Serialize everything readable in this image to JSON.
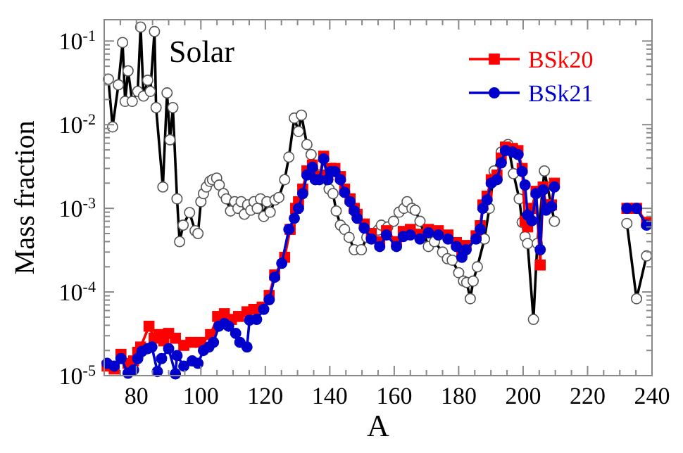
{
  "chart_data": {
    "type": "line",
    "xlabel": "A",
    "ylabel": "Mass fraction",
    "log": "y",
    "grid": false,
    "legend": "top right",
    "xlim": [
      70,
      240
    ],
    "ylim": [
      1e-05,
      0.18
    ],
    "xticks": [
      {
        "value": 75,
        "label": null
      },
      80,
      {
        "value": 85,
        "label": null
      },
      {
        "value": 90,
        "label": null
      },
      {
        "value": 95,
        "label": null
      },
      100,
      {
        "value": 105,
        "label": null
      },
      {
        "value": 110,
        "label": null
      },
      {
        "value": 115,
        "label": null
      },
      120,
      {
        "value": 125,
        "label": null
      },
      {
        "value": 130,
        "label": null
      },
      {
        "value": 135,
        "label": null
      },
      140,
      {
        "value": 145,
        "label": null
      },
      {
        "value": 150,
        "label": null
      },
      {
        "value": 155,
        "label": null
      },
      160,
      {
        "value": 165,
        "label": null
      },
      {
        "value": 170,
        "label": null
      },
      {
        "value": 175,
        "label": null
      },
      180,
      {
        "value": 185,
        "label": null
      },
      {
        "value": 190,
        "label": null
      },
      {
        "value": 195,
        "label": null
      },
      200,
      {
        "value": 205,
        "label": null
      },
      {
        "value": 210,
        "label": null
      },
      {
        "value": 215,
        "label": null
      },
      220,
      {
        "value": 225,
        "label": null
      },
      {
        "value": 230,
        "label": null
      },
      {
        "value": 235,
        "label": null
      },
      240
    ],
    "yticks": [
      {
        "value": 1e-05,
        "label": "10$^{-5}$"
      },
      {
        "value": 2e-05,
        "label": null
      },
      {
        "value": 3e-05,
        "label": null
      },
      {
        "value": 4e-05,
        "label": null
      },
      {
        "value": 5e-05,
        "label": null
      },
      {
        "value": 6e-05,
        "label": null
      },
      {
        "value": 7e-05,
        "label": null
      },
      {
        "value": 8e-05,
        "label": null
      },
      {
        "value": 9e-05,
        "label": null
      },
      {
        "value": 0.0001,
        "label": "10$^{-4}$"
      },
      {
        "value": 0.0002,
        "label": null
      },
      {
        "value": 0.0003,
        "label": null
      },
      {
        "value": 0.0004,
        "label": null
      },
      {
        "value": 0.0005,
        "label": null
      },
      {
        "value": 0.0006,
        "label": null
      },
      {
        "value": 0.0007,
        "label": null
      },
      {
        "value": 0.0008,
        "label": null
      },
      {
        "value": 0.0009,
        "label": null
      },
      {
        "value": 0.001,
        "label": "10$^{-3}$"
      },
      {
        "value": 0.002,
        "label": null
      },
      {
        "value": 0.003,
        "label": null
      },
      {
        "value": 0.004,
        "label": null
      },
      {
        "value": 0.005,
        "label": null
      },
      {
        "value": 0.006,
        "label": null
      },
      {
        "value": 0.007,
        "label": null
      },
      {
        "value": 0.008,
        "label": null
      },
      {
        "value": 0.009,
        "label": null
      },
      {
        "value": 0.01,
        "label": "10$^{-2}$"
      },
      {
        "value": 0.02,
        "label": null
      },
      {
        "value": 0.03,
        "label": null
      },
      {
        "value": 0.04,
        "label": null
      },
      {
        "value": 0.05,
        "label": null
      },
      {
        "value": 0.06,
        "label": null
      },
      {
        "value": 0.07,
        "label": null
      },
      {
        "value": 0.08,
        "label": null
      },
      {
        "value": 0.09,
        "label": null
      },
      {
        "value": 0.1,
        "label": "10$^{-1}$"
      }
    ],
    "series": [
      {
        "name": "Solar",
        "color": "#000000",
        "marker": "circle",
        "x": [
          71.3,
          72.6,
          74.4,
          75.7,
          76.5,
          77.4,
          78.7,
          80.4,
          81.3,
          82.2,
          83.5,
          84.3,
          85.6,
          86.1,
          88.2,
          89.5,
          90.4,
          91.3,
          92.6,
          93.4,
          94.5,
          96.5,
          98.2,
          99.1,
          100,
          100.8,
          101.7,
          102.8,
          103.6,
          104.9,
          105.7,
          107,
          107.9,
          109.2,
          110.5,
          111.5,
          112.5,
          113.5,
          114.5,
          115.5,
          116.5,
          117.5,
          118.5,
          119.5,
          120.5,
          121.5,
          123,
          124.2,
          126,
          127.3,
          129,
          130.3,
          131.2,
          132.9,
          134.2,
          136.8,
          139.8,
          141,
          142,
          143.3,
          144.6,
          146,
          147.6,
          149.8,
          151.5,
          153,
          155,
          156,
          158,
          159.8,
          161.5,
          163,
          164,
          165.5,
          166.5,
          168,
          170.6,
          172.5,
          175,
          176.5,
          178,
          180,
          181.5,
          182.5,
          183.6,
          184.5,
          185.8,
          188,
          189.5,
          191,
          193.2,
          195.3,
          197,
          198.8,
          199.7,
          200.6,
          201.4,
          203.2,
          204.4,
          206.6,
          209.7,
          220,
          232.2,
          235.2,
          238.3
        ],
        "values": [
          0.035,
          0.0094,
          0.03,
          0.096,
          0.019,
          0.044,
          0.019,
          0.025,
          0.147,
          0.022,
          0.034,
          0.025,
          0.13,
          0.016,
          0.0018,
          0.024,
          0.0066,
          0.016,
          0.0013,
          0.0004,
          0.00063,
          0.00089,
          0.00054,
          0.0005,
          0.0012,
          0.0015,
          0.0018,
          0.0021,
          0.0022,
          0.0023,
          0.0019,
          0.0015,
          0.0013,
          0.00093,
          0.0012,
          0.001,
          0.0012,
          0.00085,
          0.0011,
          0.00095,
          0.0012,
          0.001,
          0.0013,
          0.0008,
          0.0012,
          0.0009,
          0.00126,
          0.00135,
          0.0022,
          0.0041,
          0.012,
          0.0083,
          0.013,
          0.0058,
          0.0044,
          0.0025,
          0.0017,
          0.0015,
          0.00093,
          0.00063,
          0.00056,
          0.00045,
          0.00032,
          0.00032,
          0.00045,
          0.0005,
          0.00055,
          0.00063,
          0.0006,
          0.0007,
          0.0009,
          0.001,
          0.0012,
          0.001,
          0.00095,
          0.0007,
          0.00035,
          0.0004,
          0.0003,
          0.00025,
          0.00024,
          0.00017,
          0.000135,
          0.00013,
          8.3e-05,
          0.000135,
          0.0002,
          0.00043,
          0.001,
          0.0028,
          0.0047,
          0.0058,
          0.0026,
          0.0013,
          0.00068,
          0.00046,
          0.00038,
          4.7e-05,
          0.00038,
          0.0028,
          0.0007,
          null,
          0.00066,
          8.3e-05,
          0.00027
        ]
      },
      {
        "name": "BSk20",
        "color": "#ff0000",
        "marker": "square",
        "x": [
          70.9,
          73.1,
          75.2,
          77.4,
          79.1,
          80.4,
          81.3,
          83.9,
          85.5,
          86.9,
          88.5,
          90,
          92.1,
          94.7,
          96.9,
          100,
          103,
          105.2,
          107.3,
          109.5,
          111.7,
          114.3,
          116.4,
          119,
          121.2,
          122.9,
          126,
          127.7,
          129.4,
          130.3,
          131.6,
          132.9,
          134.6,
          135.5,
          136.8,
          138.1,
          139.4,
          140.3,
          141.6,
          143.3,
          144.6,
          146.3,
          147.6,
          148.5,
          150.7,
          152.9,
          155.5,
          157.6,
          160.7,
          162.8,
          165,
          168,
          170.6,
          173.7,
          176.7,
          179.3,
          181,
          182.3,
          185.4,
          186.7,
          187.5,
          188.8,
          190.1,
          191.9,
          193.2,
          194.5,
          196.7,
          198.4,
          199.7,
          200.6,
          201.4,
          202.7,
          204,
          205.3,
          206.2,
          207.1,
          208.8,
          209.7,
          220,
          232.2,
          235.2,
          238.3
        ],
        "values": [
          1.3e-05,
          1.2e-05,
          1.8e-05,
          1.4e-05,
          1.5e-05,
          1.9e-05,
          2.2e-05,
          3.9e-05,
          2.8e-05,
          3.1e-05,
          2.6e-05,
          3.2e-05,
          2.8e-05,
          2.3e-05,
          2.5e-05,
          2.5e-05,
          3.1e-05,
          5.1e-05,
          5.5e-05,
          4.7e-05,
          5.1e-05,
          5.8e-05,
          6.2e-05,
          6.6e-05,
          9.1e-05,
          0.00016,
          0.00026,
          0.00056,
          0.001,
          0.0012,
          0.0017,
          0.0028,
          0.0033,
          0.0024,
          0.0024,
          0.0042,
          0.0025,
          0.003,
          0.003,
          0.0024,
          0.0017,
          0.0013,
          0.001,
          0.00085,
          0.00065,
          0.0005,
          0.0004,
          0.00054,
          0.0004,
          0.00053,
          0.00056,
          0.00049,
          0.00056,
          0.00054,
          0.00048,
          0.00039,
          0.0003,
          0.00036,
          0.00047,
          0.00062,
          0.0011,
          0.0014,
          0.0022,
          0.0025,
          0.004,
          0.0054,
          0.0052,
          0.0049,
          0.003,
          0.0007,
          0.0006,
          0.001,
          0.0016,
          0.00021,
          0.0018,
          0.0011,
          0.0011,
          0.002,
          null,
          0.001,
          0.001,
          0.00068
        ]
      },
      {
        "name": "BSk21",
        "color": "#0000cc",
        "marker": "circle",
        "x": [
          70.9,
          73.1,
          75.2,
          77.4,
          79.1,
          80.4,
          81.7,
          83.5,
          84.8,
          86.5,
          87.8,
          90,
          92.1,
          92.6,
          94.7,
          97.3,
          99.1,
          100.8,
          102.5,
          103.9,
          105.6,
          107.3,
          108.6,
          110.8,
          112.1,
          114.3,
          115.1,
          117.3,
          119.5,
          121.2,
          122.9,
          125.1,
          127.3,
          129,
          130.3,
          131.6,
          132.9,
          134.6,
          135.5,
          136.8,
          138.1,
          139.4,
          140.3,
          141.6,
          143.3,
          144.6,
          146.3,
          147.6,
          148.5,
          150.7,
          152.9,
          155.5,
          157.6,
          160.7,
          162.8,
          165,
          168,
          170.6,
          173.7,
          176.7,
          179.3,
          181,
          182.3,
          185.4,
          186.7,
          187.5,
          188.8,
          190.1,
          191.9,
          193.2,
          194.5,
          196.7,
          198.4,
          199.7,
          200.6,
          201.4,
          202.7,
          204,
          205.3,
          206.2,
          207.1,
          208.8,
          209.7,
          220,
          232.2,
          235.2,
          238.3
        ],
        "values": [
          1.4e-05,
          1.3e-05,
          1.6e-05,
          1.07e-05,
          1.17e-05,
          1.6e-05,
          1.95e-05,
          2.1e-05,
          2.2e-05,
          1.12e-05,
          1.6e-05,
          2.1e-05,
          1.05e-05,
          1.74e-05,
          1.3e-05,
          1.5e-05,
          1.4e-05,
          2e-05,
          2.2e-05,
          2.5e-05,
          3.9e-05,
          4.2e-05,
          3.9e-05,
          3.2e-05,
          2.5e-05,
          2.2e-05,
          4.6e-05,
          4.7e-05,
          6.2e-05,
          8.1e-05,
          0.00015,
          0.00022,
          0.00056,
          0.00076,
          0.001,
          0.0015,
          0.0025,
          0.0031,
          0.0022,
          0.0022,
          0.0039,
          0.0022,
          0.00275,
          0.00275,
          0.0022,
          0.00155,
          0.0012,
          0.00093,
          0.00076,
          0.00058,
          0.00043,
          0.00035,
          0.00048,
          0.00035,
          0.00046,
          0.00048,
          0.00043,
          0.00051,
          0.00048,
          0.00043,
          0.00035,
          0.00026,
          0.00032,
          0.00043,
          0.00056,
          0.001,
          0.00126,
          0.002,
          0.0022,
          0.0035,
          0.0049,
          0.0047,
          0.0044,
          0.00275,
          0.0019,
          0.00083,
          0.00071,
          0.0015,
          0.00032,
          0.00166,
          0.00095,
          0.00105,
          0.0018,
          null,
          0.001,
          0.001,
          0.00063
        ]
      }
    ]
  }
}
